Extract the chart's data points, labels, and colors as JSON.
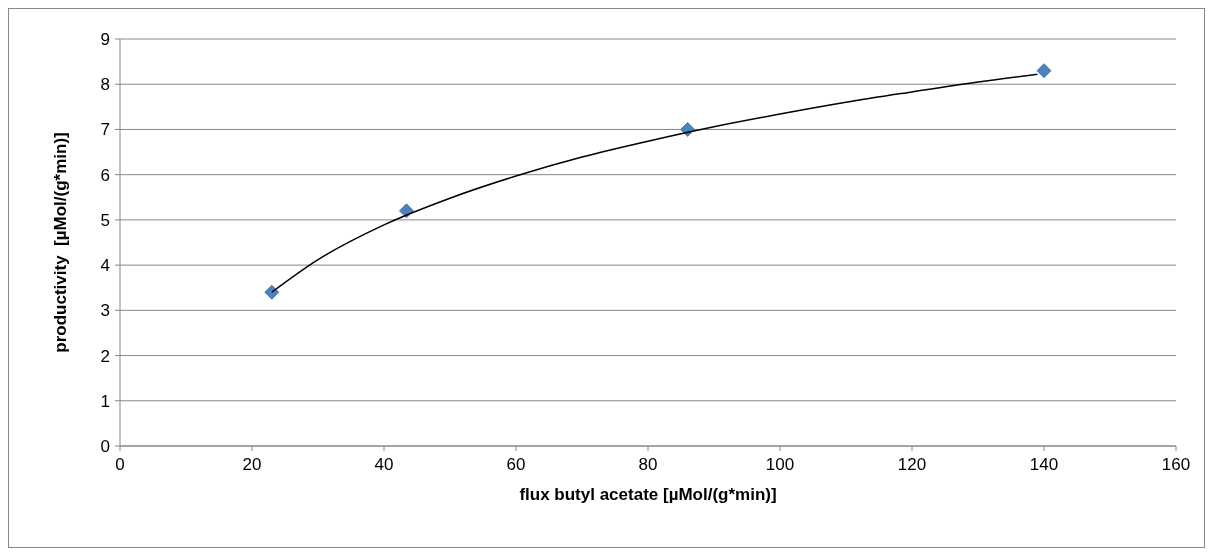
{
  "chart_data": {
    "type": "scatter",
    "xlabel": "flux butyl acetate [µMol/(g*min)]",
    "ylabel": "productivity  [µMol/(g*min)]",
    "xlim": [
      0,
      160
    ],
    "xticks": [
      0,
      20,
      40,
      60,
      80,
      100,
      120,
      140,
      160
    ],
    "ylim": [
      0,
      9
    ],
    "yticks": [
      0,
      1,
      2,
      3,
      4,
      5,
      6,
      7,
      8,
      9
    ],
    "grid": "y",
    "series": [
      {
        "color": "#4f81bd",
        "marker": "diamond",
        "x": [
          23,
          43.4,
          86,
          140
        ],
        "values": [
          3.4,
          5.2,
          7.0,
          8.3
        ]
      },
      {
        "type": "line",
        "color": "#000000",
        "marker": "none",
        "line_style": "solid",
        "x": [
          23,
          30,
          40,
          50,
          60,
          70,
          80,
          90,
          100,
          110,
          120,
          130,
          139
        ],
        "values": [
          3.4,
          4.12,
          4.89,
          5.48,
          5.97,
          6.39,
          6.74,
          7.06,
          7.34,
          7.6,
          7.83,
          8.05,
          8.22
        ]
      }
    ]
  }
}
